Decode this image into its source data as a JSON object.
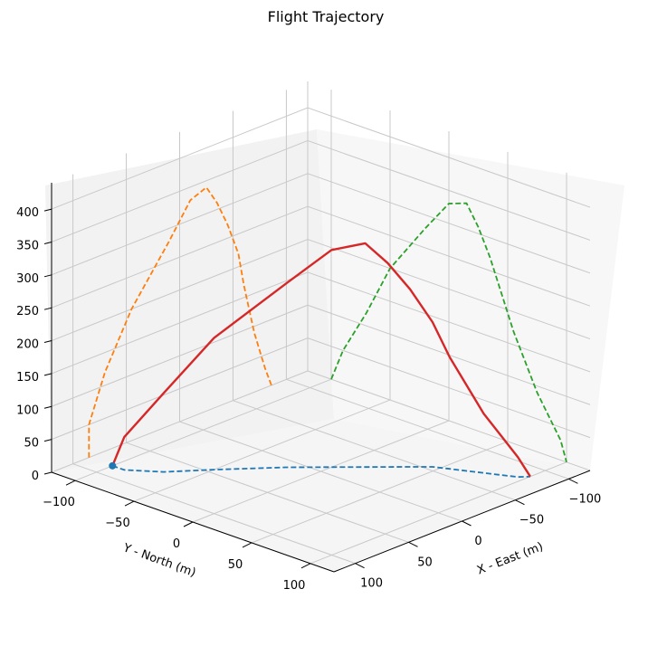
{
  "chart_data": {
    "type": "line3d",
    "title": "Flight Trajectory",
    "xlabel": "X - East (m)",
    "ylabel": "Y - North (m)",
    "zlabel": "",
    "xlim": [
      -120,
      120
    ],
    "ylim": [
      -120,
      120
    ],
    "zlim": [
      0,
      440
    ],
    "xticks": [
      "−100",
      "−50",
      "0",
      "50",
      "100"
    ],
    "yticks": [
      "−100",
      "−50",
      "0",
      "50",
      "100"
    ],
    "zticks": [
      "0",
      "50",
      "100",
      "150",
      "200",
      "250",
      "300",
      "350",
      "400"
    ],
    "grid": true,
    "colors": {
      "trajectory": "#d62728",
      "proj_xy": "#1f77b4",
      "proj_xz": "#ff7f0e",
      "proj_yz": "#2ca02c",
      "pane_left": "#f2f2f2",
      "pane_right": "#f7f7f7",
      "pane_floor": "#f5f5f5",
      "grid": "#c8c8c8"
    },
    "series": [
      {
        "role": "trajectory",
        "x": [
          85,
          85,
          70,
          45,
          10,
          -10,
          -25,
          -35,
          -45,
          -55,
          -60,
          -65,
          -70,
          -75,
          -80,
          -86
        ],
        "y": [
          -100,
          -90,
          -70,
          -50,
          -20,
          0,
          15,
          25,
          35,
          45,
          55,
          65,
          75,
          85,
          95,
          100
        ],
        "z": [
          0,
          50,
          120,
          200,
          280,
          330,
          340,
          310,
          270,
          220,
          170,
          130,
          90,
          60,
          30,
          0
        ]
      }
    ],
    "projections": {
      "xy_floor": {
        "style": "dashed"
      },
      "xz_wall": {
        "style": "dashed"
      },
      "yz_wall": {
        "style": "dashed"
      }
    },
    "start_marker": {
      "x": 85,
      "y": -100,
      "z": 0
    }
  }
}
